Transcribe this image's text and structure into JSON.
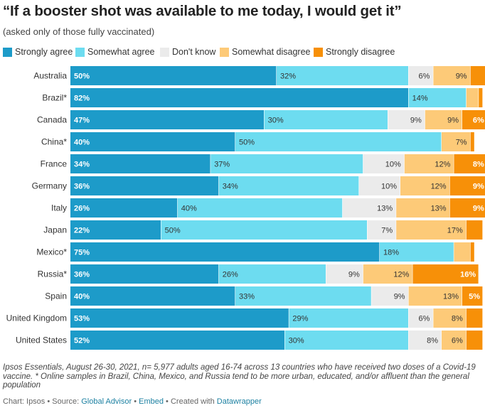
{
  "title": "“If a booster shot was available to me today, I would get it”",
  "subtitle": "(asked only of those fully vaccinated)",
  "colors": {
    "strongly_agree": "#1d9bc9",
    "somewhat_agree": "#6ddcf0",
    "dont_know": "#ebebeb",
    "somewhat_disagree": "#fdca78",
    "strongly_disagree": "#f79008"
  },
  "legend": [
    {
      "label": "Strongly agree",
      "color": "#1d9bc9"
    },
    {
      "label": "Somewhat agree",
      "color": "#6ddcf0"
    },
    {
      "label": "Don't know",
      "color": "#ebebeb"
    },
    {
      "label": "Somewhat disagree",
      "color": "#fdca78"
    },
    {
      "label": "Strongly disagree",
      "color": "#f79008"
    }
  ],
  "chart_data": {
    "type": "bar",
    "orientation": "horizontal",
    "stacked": true,
    "title": "“If a booster shot was available to me today, I would get it”",
    "subtitle": "(asked only of those fully vaccinated)",
    "categories": [
      "Australia",
      "Brazil*",
      "Canada",
      "China*",
      "France",
      "Germany",
      "Italy",
      "Japan",
      "Mexico*",
      "Russia*",
      "Spain",
      "United Kingdom",
      "United States"
    ],
    "series": [
      {
        "name": "Strongly agree",
        "values": [
          50,
          82,
          47,
          40,
          34,
          36,
          26,
          22,
          75,
          36,
          40,
          53,
          52
        ]
      },
      {
        "name": "Somewhat agree",
        "values": [
          32,
          14,
          30,
          50,
          37,
          34,
          40,
          50,
          18,
          26,
          33,
          29,
          30
        ]
      },
      {
        "name": "Don't know",
        "values": [
          6,
          0,
          9,
          0,
          10,
          10,
          13,
          7,
          0,
          9,
          9,
          6,
          8
        ]
      },
      {
        "name": "Somewhat disagree",
        "values": [
          9,
          3,
          9,
          7,
          12,
          12,
          13,
          17,
          4,
          12,
          13,
          8,
          6
        ]
      },
      {
        "name": "Strongly disagree",
        "values": [
          4,
          1,
          6,
          1,
          8,
          9,
          9,
          4,
          1,
          16,
          5,
          4,
          4
        ]
      }
    ],
    "labels": [
      [
        "50%",
        "32%",
        "6%",
        "9%",
        ""
      ],
      [
        "82%",
        "14%",
        "",
        "",
        ""
      ],
      [
        "47%",
        "30%",
        "9%",
        "9%",
        "6%"
      ],
      [
        "40%",
        "50%",
        "",
        "7%",
        ""
      ],
      [
        "34%",
        "37%",
        "10%",
        "12%",
        "8%"
      ],
      [
        "36%",
        "34%",
        "10%",
        "12%",
        "9%"
      ],
      [
        "26%",
        "40%",
        "13%",
        "13%",
        "9%"
      ],
      [
        "22%",
        "50%",
        "7%",
        "17%",
        ""
      ],
      [
        "75%",
        "18%",
        "",
        "",
        ""
      ],
      [
        "36%",
        "26%",
        "9%",
        "12%",
        "16%"
      ],
      [
        "40%",
        "33%",
        "9%",
        "13%",
        "5%"
      ],
      [
        "53%",
        "29%",
        "6%",
        "8%",
        ""
      ],
      [
        "52%",
        "30%",
        "8%",
        "6%",
        ""
      ]
    ],
    "xlim": [
      0,
      100
    ]
  },
  "notes": "Ipsos Essentials, August 26-30, 2021, n= 5,977 adults aged 16-74 across 13 countries who have received two doses of a Covid-19 vaccine. * Online samples in Brazil, China, Mexico, and Russia tend to be more urban, educated, and/or affluent than the general population",
  "footer": {
    "chart_prefix": "Chart: Ipsos • Source: ",
    "source_link": "Global Advisor",
    "sep1": " • ",
    "embed_link": "Embed",
    "sep2": " • Created with ",
    "tool_link": "Datawrapper"
  }
}
